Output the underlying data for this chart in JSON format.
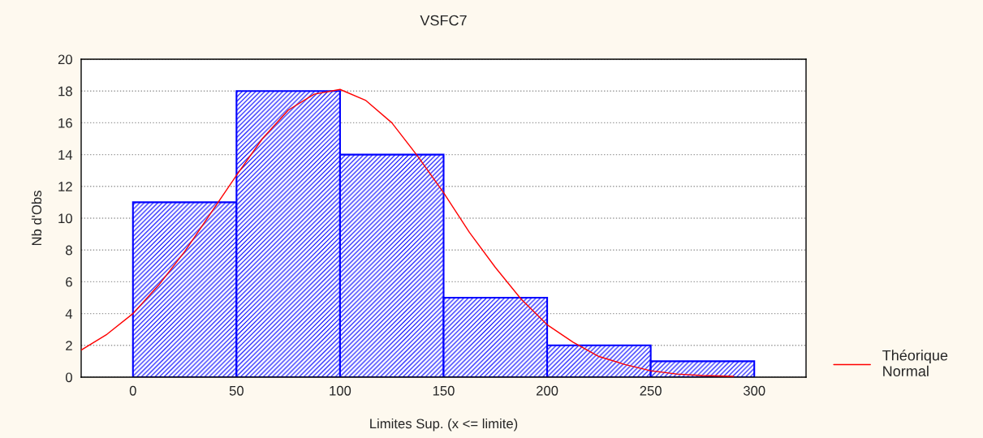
{
  "chart_data": {
    "type": "histogram",
    "title": "VSFC7",
    "xlabel": "Limites Sup. (x <= limite)",
    "ylabel": "Nb d'Obs",
    "xlim": [
      -25,
      325
    ],
    "xticks": [
      0,
      50,
      100,
      150,
      200,
      250,
      300
    ],
    "ylim": [
      0,
      20
    ],
    "yticks": [
      0,
      2,
      4,
      6,
      8,
      10,
      12,
      14,
      16,
      18,
      20
    ],
    "grid": "y",
    "legend": "right",
    "series": [
      {
        "color": "#0000ff",
        "bins": [
          0,
          50,
          100,
          150,
          200,
          250,
          300
        ],
        "values": [
          11,
          18,
          14,
          5,
          2,
          1
        ]
      },
      {
        "type": "line",
        "name": "Théorique\nNormal",
        "color": "#ff0000",
        "x": [
          -25,
          -12.5,
          0,
          12.5,
          25,
          37.5,
          50,
          62.5,
          75,
          87.5,
          100,
          112.5,
          125,
          137.5,
          150,
          162.5,
          175,
          187.5,
          200,
          212.5,
          225,
          237.5,
          250,
          262.5,
          275,
          290
        ],
        "values": [
          1.7,
          2.7,
          4.0,
          5.8,
          7.9,
          10.3,
          12.7,
          15.0,
          16.8,
          17.8,
          18.1,
          17.4,
          16.0,
          13.9,
          11.6,
          9.1,
          6.9,
          4.9,
          3.3,
          2.2,
          1.3,
          0.8,
          0.4,
          0.2,
          0.1,
          0.05
        ]
      }
    ]
  }
}
